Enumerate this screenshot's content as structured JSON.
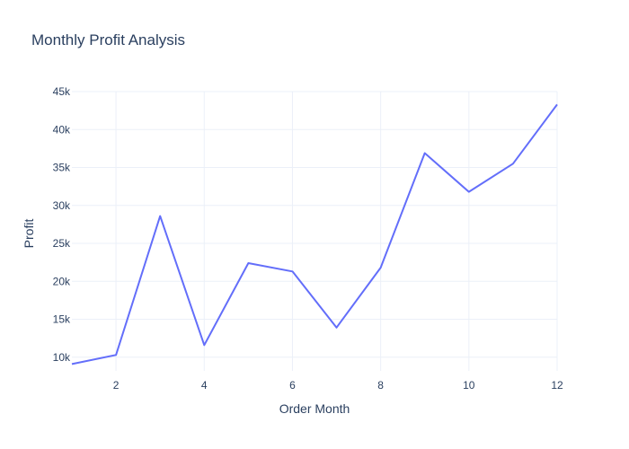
{
  "chart_data": {
    "type": "line",
    "title": "Monthly Profit Analysis",
    "xlabel": "Order Month",
    "ylabel": "Profit",
    "x": [
      1,
      2,
      3,
      4,
      5,
      6,
      7,
      8,
      9,
      10,
      11,
      12
    ],
    "series": [
      {
        "values": [
          9100,
          10300,
          28600,
          11600,
          22400,
          21300,
          13900,
          21800,
          36900,
          31800,
          35500,
          43300
        ],
        "color": "#636efa"
      }
    ],
    "xlim": [
      1,
      12
    ],
    "ylim": [
      8200,
      45000
    ],
    "xticks": [
      2,
      4,
      6,
      8,
      10,
      12
    ],
    "xtick_labels": [
      "2",
      "4",
      "6",
      "8",
      "10",
      "12"
    ],
    "yticks": [
      10000,
      15000,
      20000,
      25000,
      30000,
      35000,
      40000,
      45000
    ],
    "ytick_labels": [
      "10k",
      "15k",
      "20k",
      "25k",
      "30k",
      "35k",
      "40k",
      "45k"
    ],
    "grid": true,
    "legend": "none"
  }
}
